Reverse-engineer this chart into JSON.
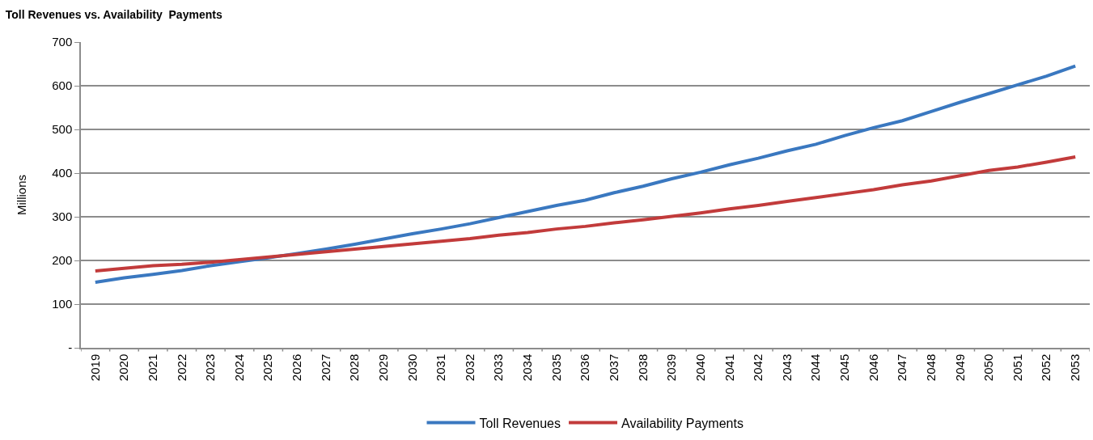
{
  "chart_data": {
    "type": "line",
    "title": "Toll Revenues vs. Availability  Payments",
    "ylabel": "Millions",
    "categories": [
      "2019",
      "2020",
      "2021",
      "2022",
      "2023",
      "2024",
      "2025",
      "2026",
      "2027",
      "2028",
      "2029",
      "2030",
      "2031",
      "2032",
      "2033",
      "2034",
      "2035",
      "2036",
      "2037",
      "2038",
      "2039",
      "2040",
      "2041",
      "2042",
      "2043",
      "2044",
      "2045",
      "2046",
      "2047",
      "2048",
      "2049",
      "2050",
      "2051",
      "2052",
      "2053"
    ],
    "series": [
      {
        "name": "Toll Revenues",
        "color": "#3a78c0",
        "values": [
          150,
          160,
          168,
          177,
          188,
          197,
          206,
          216,
          226,
          237,
          249,
          261,
          272,
          284,
          298,
          312,
          326,
          338,
          355,
          370,
          387,
          402,
          419,
          434,
          451,
          466,
          486,
          504,
          520,
          541,
          562,
          582,
          602,
          622,
          645
        ]
      },
      {
        "name": "Availability Payments",
        "color": "#c23b3b",
        "values": [
          176,
          182,
          188,
          191,
          196,
          202,
          208,
          214,
          220,
          226,
          232,
          238,
          244,
          250,
          258,
          264,
          272,
          278,
          286,
          293,
          301,
          309,
          318,
          326,
          335,
          344,
          353,
          362,
          373,
          382,
          394,
          406,
          414,
          425,
          437
        ]
      }
    ],
    "ylim": [
      0,
      700
    ],
    "yticks": [
      {
        "value": 0,
        "label": "-"
      },
      100,
      200,
      300,
      400,
      500,
      600,
      700
    ],
    "grid": "y",
    "legend": "bottom",
    "marker": "none",
    "line_style": "solid"
  }
}
